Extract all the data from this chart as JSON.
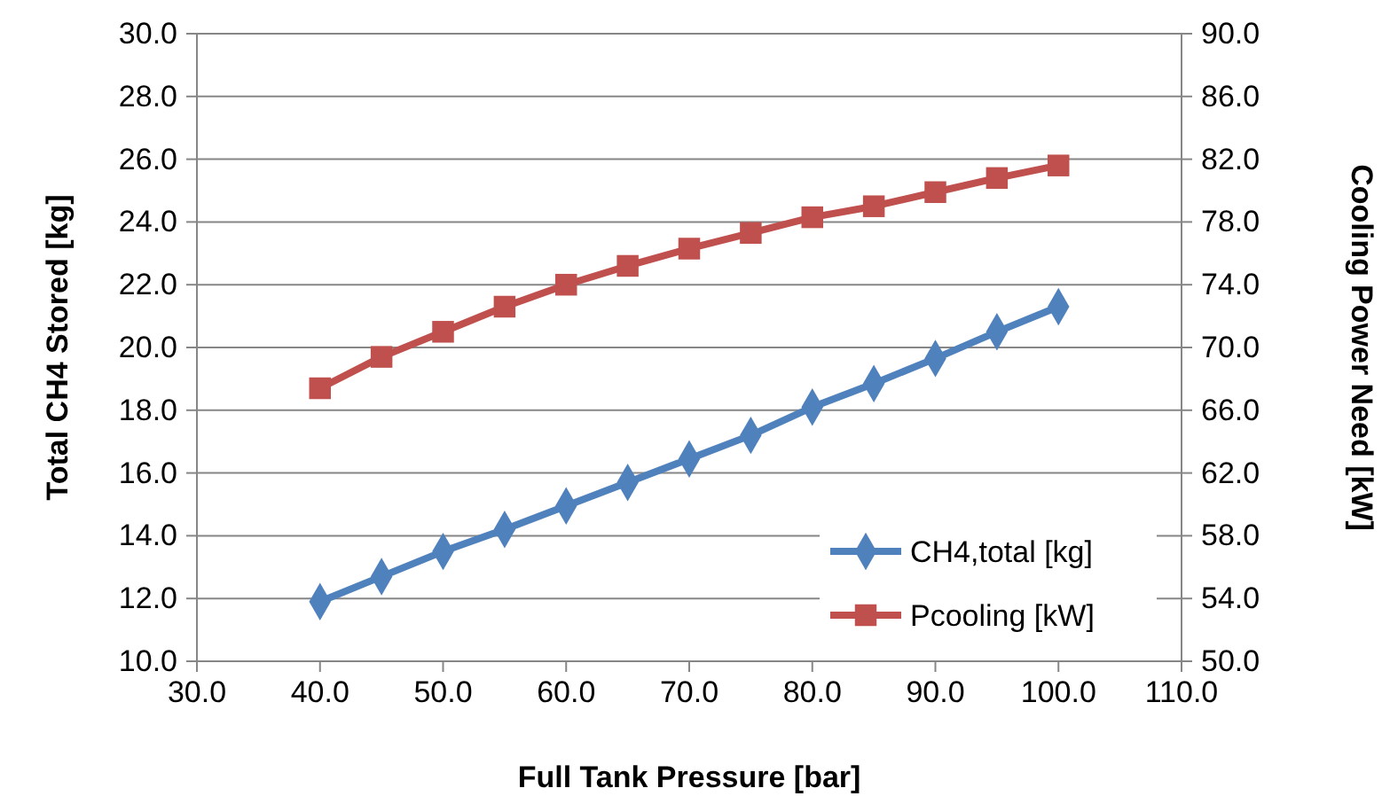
{
  "chart_data": {
    "type": "line",
    "xlabel": "Full Tank Pressure [bar]",
    "ylabel": "Total CH4 Stored [kg]",
    "y2label": "Cooling Power Need [kW]",
    "x": [
      40,
      45,
      50,
      55,
      60,
      65,
      70,
      75,
      80,
      85,
      90,
      95,
      100
    ],
    "series": [
      {
        "name": "CH4,total [kg]",
        "color": "#4f81bd",
        "marker": "diamond",
        "values": [
          11.9,
          12.7,
          13.5,
          14.2,
          14.95,
          15.7,
          16.45,
          17.2,
          18.1,
          18.85,
          19.65,
          20.5,
          21.3
        ]
      },
      {
        "name": "Pcooling [kW]",
        "color": "#c0504d",
        "marker": "square",
        "axis": "y2",
        "values": [
          67.4,
          69.4,
          71.0,
          72.6,
          74.0,
          75.2,
          76.3,
          77.3,
          78.3,
          79.0,
          79.9,
          80.8,
          81.6
        ]
      }
    ],
    "xlim": [
      30,
      110
    ],
    "xticks": [
      {
        "value": 30,
        "label": "30.0"
      },
      {
        "value": 40,
        "label": "40.0"
      },
      {
        "value": 50,
        "label": "50.0"
      },
      {
        "value": 60,
        "label": "60.0"
      },
      {
        "value": 70,
        "label": "70.0"
      },
      {
        "value": 80,
        "label": "80.0"
      },
      {
        "value": 90,
        "label": "90.0"
      },
      {
        "value": 100,
        "label": "100.0"
      },
      {
        "value": 110,
        "label": "110.0"
      }
    ],
    "ylim": [
      10,
      30
    ],
    "yticks": [
      {
        "value": 10,
        "label": "10.0"
      },
      {
        "value": 12,
        "label": "12.0"
      },
      {
        "value": 14,
        "label": "14.0"
      },
      {
        "value": 16,
        "label": "16.0"
      },
      {
        "value": 18,
        "label": "18.0"
      },
      {
        "value": 20,
        "label": "20.0"
      },
      {
        "value": 22,
        "label": "22.0"
      },
      {
        "value": 24,
        "label": "24.0"
      },
      {
        "value": 26,
        "label": "26.0"
      },
      {
        "value": 28,
        "label": "28.0"
      },
      {
        "value": 30,
        "label": "30.0"
      }
    ],
    "y2lim": [
      50,
      90
    ],
    "y2ticks": [
      {
        "value": 50,
        "label": "50.0"
      },
      {
        "value": 54,
        "label": "54.0"
      },
      {
        "value": 58,
        "label": "58.0"
      },
      {
        "value": 62,
        "label": "62.0"
      },
      {
        "value": 66,
        "label": "66.0"
      },
      {
        "value": 70,
        "label": "70.0"
      },
      {
        "value": 74,
        "label": "74.0"
      },
      {
        "value": 78,
        "label": "78.0"
      },
      {
        "value": 82,
        "label": "82.0"
      },
      {
        "value": 86,
        "label": "86.0"
      },
      {
        "value": 90,
        "label": "90.0"
      }
    ],
    "grid": "y",
    "legend": "bottom right",
    "line_style": "solid"
  }
}
